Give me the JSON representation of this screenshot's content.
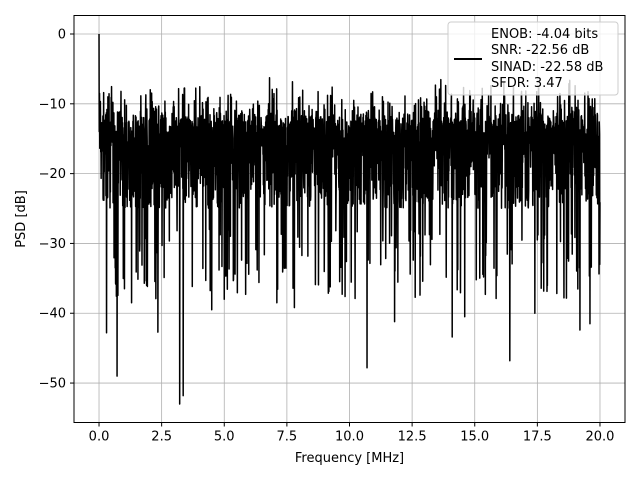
{
  "chart_data": {
    "type": "line",
    "title": "",
    "xlabel": "Frequency [MHz]",
    "ylabel": "PSD [dB]",
    "xlim": [
      -0.999,
      20.999
    ],
    "ylim": [
      -55.65,
      2.65
    ],
    "xticks": [
      0.0,
      2.5,
      5.0,
      7.5,
      10.0,
      12.5,
      15.0,
      17.5,
      20.0
    ],
    "xtick_labels": [
      "0.0",
      "2.5",
      "5.0",
      "7.5",
      "10.0",
      "12.5",
      "15.0",
      "17.5",
      "20.0"
    ],
    "yticks": [
      0,
      -10,
      -20,
      -30,
      -40,
      -50
    ],
    "ytick_labels": [
      "0",
      "−10",
      "−20",
      "−30",
      "−40",
      "−50"
    ],
    "grid": true,
    "legend_position": "top-right",
    "line_color": "#000000",
    "legend": {
      "lines": [
        "ENOB: -4.04 bits",
        "SNR: -22.56 dB",
        "SINAD: -22.58 dB",
        "SFDR: 3.47"
      ]
    },
    "series": [
      {
        "name": "ENOB: -4.04 bits",
        "x_range": [
          0.0,
          20.0
        ],
        "peaks": [
          {
            "x": 0.0,
            "y": 0.0
          },
          {
            "x": 0.02,
            "y": -8.5
          },
          {
            "x": 0.3,
            "y": -42.8
          },
          {
            "x": 0.72,
            "y": -49.0
          },
          {
            "x": 1.3,
            "y": -38.5
          },
          {
            "x": 1.9,
            "y": -36.0
          },
          {
            "x": 2.35,
            "y": -42.7
          },
          {
            "x": 3.22,
            "y": -53.0
          },
          {
            "x": 3.36,
            "y": -51.8
          },
          {
            "x": 4.5,
            "y": -39.5
          },
          {
            "x": 5.0,
            "y": -38.0
          },
          {
            "x": 7.1,
            "y": -38.5
          },
          {
            "x": 7.8,
            "y": -39.2
          },
          {
            "x": 10.7,
            "y": -47.8
          },
          {
            "x": 11.8,
            "y": -41.2
          },
          {
            "x": 14.1,
            "y": -43.4
          },
          {
            "x": 14.6,
            "y": -40.5
          },
          {
            "x": 16.4,
            "y": -46.8
          },
          {
            "x": 17.4,
            "y": -40.0
          },
          {
            "x": 19.2,
            "y": -42.4
          },
          {
            "x": 19.6,
            "y": -41.5
          }
        ],
        "typical_band": [
          -25.0,
          -12.0
        ],
        "envelope_top": -6.0
      }
    ]
  }
}
